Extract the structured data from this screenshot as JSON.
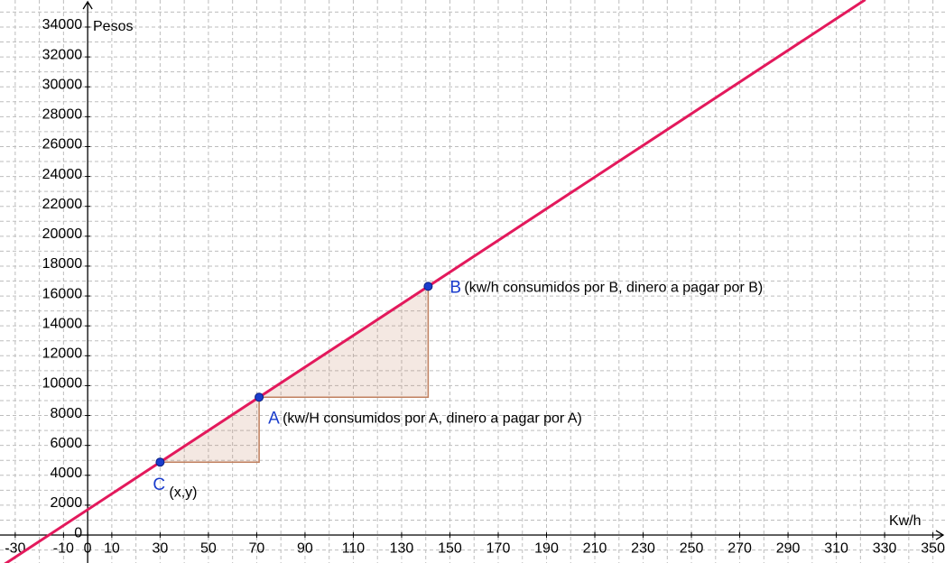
{
  "chart_data": {
    "type": "line",
    "x_axis_label": "Kw/h",
    "y_axis_label": "Pesos",
    "xlim": [
      -36.3,
      355
    ],
    "ylim": [
      -1870,
      35810
    ],
    "xticks": [
      -30,
      -10,
      0,
      10,
      30,
      50,
      70,
      90,
      110,
      130,
      150,
      170,
      190,
      210,
      230,
      250,
      270,
      290,
      310,
      330,
      350
    ],
    "yticks": [
      0,
      2000,
      4000,
      6000,
      8000,
      10000,
      12000,
      14000,
      16000,
      18000,
      20000,
      22000,
      24000,
      26000,
      28000,
      30000,
      32000,
      34000
    ],
    "grid": true,
    "x_grid_step": 10,
    "y_grid_step": 1000,
    "series": [
      {
        "color": "#e3195c",
        "x": [
          -36.3,
          322
        ],
        "values": [
          -2148,
          35832
        ]
      }
    ],
    "points": [
      {
        "name": "C",
        "x": 30,
        "y": 4880,
        "label": "(x,y)"
      },
      {
        "name": "A",
        "x": 71,
        "y": 9226,
        "label": "(kw/H consumidos por A, dinero a pagar por A)"
      },
      {
        "name": "B",
        "x": 141,
        "y": 16646,
        "label": "(kw/h consumidos por B, dinero a pagar por B)"
      }
    ],
    "point_color": "#1a3ccc",
    "triangle_color": "#c0805f"
  }
}
